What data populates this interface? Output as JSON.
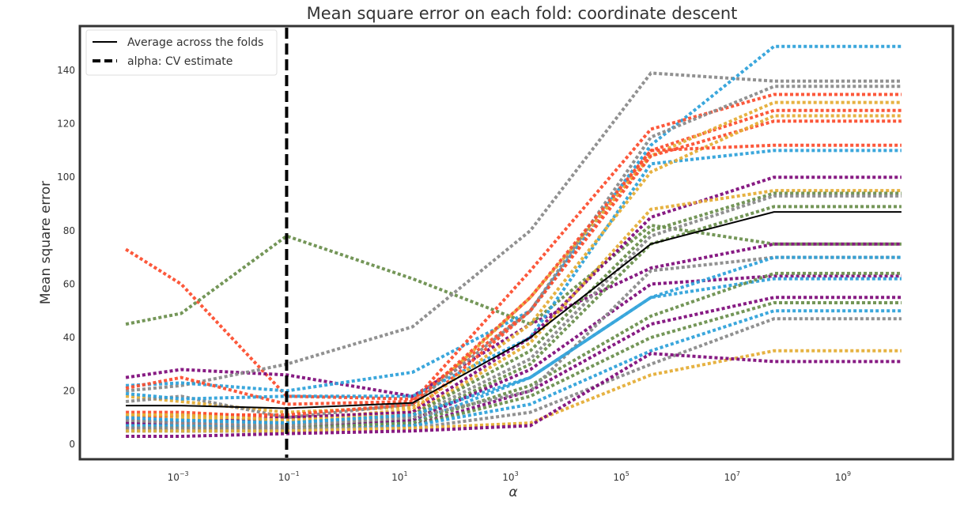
{
  "chart_data": {
    "type": "line",
    "title": "Mean square error on each fold: coordinate descent",
    "xlabel": "α",
    "ylabel": "Mean square error",
    "xscale": "log",
    "xlim_exp": [
      -4.8,
      10.9
    ],
    "ylim": [
      -5,
      156
    ],
    "grid": false,
    "legend_position": "top-left",
    "x_tick_exponents": [
      -3,
      -1,
      1,
      3,
      5,
      7,
      9
    ],
    "x_tick_labels": [
      "10",
      "10",
      "10",
      "10",
      "10",
      "10",
      "10"
    ],
    "x_tick_sup": [
      "−3",
      "−1",
      "1",
      "3",
      "5",
      "7",
      "9"
    ],
    "y_ticks": [
      0,
      20,
      40,
      60,
      80,
      100,
      120,
      140
    ],
    "y_tick_labels": [
      "0",
      "20",
      "40",
      "60",
      "80",
      "100",
      "120",
      "140"
    ],
    "alpha_cv_estimate": 0.08,
    "legend": [
      {
        "label": "Average across the folds",
        "style": "solid"
      },
      {
        "label": "alpha: CV estimate",
        "style": "dashed"
      }
    ],
    "x": [
      0.0001,
      0.001,
      0.08,
      15,
      2000,
      300000,
      50000000,
      10000000000
    ],
    "average": [
      14.5,
      14.5,
      13.5,
      15.5,
      40,
      75,
      87,
      87
    ],
    "folds": [
      {
        "color": "#fc4f30",
        "values": [
          73,
          60,
          18,
          17,
          50,
          110,
          125,
          125
        ]
      },
      {
        "color": "#6d904f",
        "values": [
          45,
          49,
          78,
          62,
          45,
          82,
          75,
          75
        ]
      },
      {
        "color": "#810f7c",
        "values": [
          25,
          28,
          26,
          18,
          45,
          66,
          75,
          75
        ]
      },
      {
        "color": "#8b8b8b",
        "values": [
          20,
          22,
          30,
          44,
          80,
          139,
          136,
          136
        ]
      },
      {
        "color": "#30a2da",
        "values": [
          22,
          23,
          20,
          27,
          50,
          112,
          149,
          149
        ]
      },
      {
        "color": "#fc4f30",
        "values": [
          21,
          25,
          15,
          16,
          65,
          118,
          131,
          131
        ]
      },
      {
        "color": "#e5ae38",
        "values": [
          18,
          16,
          12,
          14,
          55,
          108,
          128,
          128
        ]
      },
      {
        "color": "#8b8b8b",
        "values": [
          16,
          18,
          10,
          15,
          50,
          115,
          134,
          134
        ]
      },
      {
        "color": "#30a2da",
        "values": [
          19,
          17,
          18,
          18,
          40,
          105,
          110,
          110
        ]
      },
      {
        "color": "#fc4f30",
        "values": [
          12,
          12,
          10,
          12,
          50,
          108,
          121,
          121
        ]
      },
      {
        "color": "#e5ae38",
        "values": [
          11,
          10,
          9,
          13,
          45,
          102,
          123,
          123
        ]
      },
      {
        "color": "#fc4f30",
        "values": [
          10,
          11,
          11,
          15,
          55,
          110,
          112,
          112
        ]
      },
      {
        "color": "#810f7c",
        "values": [
          9,
          8,
          10,
          12,
          40,
          85,
          100,
          100
        ]
      },
      {
        "color": "#e5ae38",
        "values": [
          11,
          11,
          9,
          11,
          38,
          88,
          95,
          95
        ]
      },
      {
        "color": "#6d904f",
        "values": [
          8,
          9,
          8,
          11,
          35,
          80,
          94,
          94
        ]
      },
      {
        "color": "#8b8b8b",
        "values": [
          9,
          9,
          8,
          10,
          32,
          78,
          93,
          93
        ]
      },
      {
        "color": "#6d904f",
        "values": [
          7,
          7,
          7,
          9,
          30,
          75,
          89,
          89
        ]
      },
      {
        "color": "#810f7c",
        "values": [
          8,
          8,
          6,
          9,
          28,
          60,
          63,
          63
        ]
      },
      {
        "color": "#30a2da",
        "values": [
          7,
          7,
          6,
          8,
          25,
          55,
          62,
          62
        ]
      },
      {
        "color": "#6d904f",
        "values": [
          6,
          6,
          6,
          8,
          22,
          48,
          64,
          64
        ]
      },
      {
        "color": "#810f7c",
        "values": [
          6,
          5,
          5,
          7,
          20,
          45,
          55,
          55
        ]
      },
      {
        "color": "#6d904f",
        "values": [
          5,
          6,
          5,
          7,
          18,
          40,
          53,
          53
        ]
      },
      {
        "color": "#30a2da",
        "values": [
          5,
          5,
          5,
          7,
          15,
          35,
          50,
          50
        ]
      },
      {
        "color": "#8b8b8b",
        "values": [
          6,
          6,
          6,
          6,
          12,
          30,
          47,
          47
        ]
      },
      {
        "color": "#e5ae38",
        "values": [
          5,
          5,
          5,
          6,
          8,
          26,
          35,
          35
        ]
      },
      {
        "color": "#810f7c",
        "values": [
          3,
          3,
          4,
          5,
          7,
          34,
          31,
          31
        ]
      },
      {
        "color": "#8b8b8b",
        "values": [
          9,
          8,
          7,
          10,
          20,
          65,
          70,
          70
        ]
      },
      {
        "color": "#30a2da",
        "values": [
          10,
          9,
          8,
          11,
          25,
          55,
          70,
          70
        ]
      }
    ]
  }
}
